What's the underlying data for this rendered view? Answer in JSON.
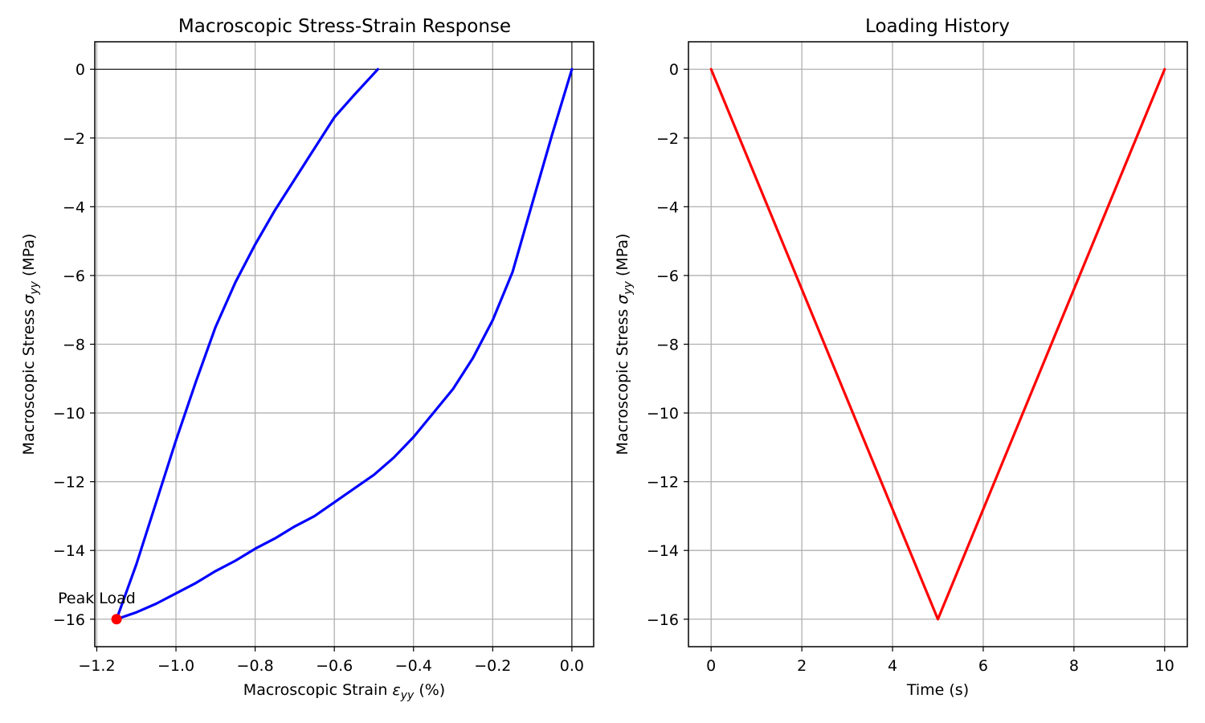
{
  "chart_data": [
    {
      "type": "line",
      "title": "Macroscopic Stress-Strain Response",
      "xlabel": {
        "prefix": "Macroscopic Strain ",
        "symbol": "ε",
        "sub": "yy",
        "suffix": " (%)"
      },
      "ylabel": {
        "prefix": "Macroscopic Stress ",
        "symbol": "σ",
        "sub": "yy",
        "suffix": " (MPa)"
      },
      "xlim": [
        -1.205,
        0.055
      ],
      "ylim": [
        -16.8,
        0.8
      ],
      "xticks": [
        -1.2,
        -1.0,
        -0.8,
        -0.6,
        -0.4,
        -0.2,
        0.0
      ],
      "xtick_labels": [
        "−1.2",
        "−1.0",
        "−0.8",
        "−0.6",
        "−0.4",
        "−0.2",
        "0.0"
      ],
      "yticks": [
        0,
        -2,
        -4,
        -6,
        -8,
        -10,
        -12,
        -14,
        -16
      ],
      "ytick_labels": [
        "0",
        "−2",
        "−4",
        "−6",
        "−8",
        "−10",
        "−12",
        "−14",
        "−16"
      ],
      "grid": true,
      "reference_lines": {
        "x": 0,
        "y": 0
      },
      "series": [
        {
          "color": "#0000ff",
          "x": [
            0.0,
            -0.05,
            -0.1,
            -0.15,
            -0.2,
            -0.25,
            -0.3,
            -0.35,
            -0.4,
            -0.45,
            -0.5,
            -0.55,
            -0.6,
            -0.65,
            -0.7,
            -0.75,
            -0.8,
            -0.85,
            -0.9,
            -0.95,
            -1.0,
            -1.05,
            -1.1,
            -1.15,
            -1.1,
            -1.05,
            -1.0,
            -0.95,
            -0.9,
            -0.85,
            -0.8,
            -0.75,
            -0.7,
            -0.65,
            -0.6,
            -0.55,
            -0.49
          ],
          "y": [
            0.0,
            -1.9,
            -3.9,
            -5.9,
            -7.3,
            -8.4,
            -9.3,
            -10.0,
            -10.7,
            -11.3,
            -11.8,
            -12.2,
            -12.6,
            -13.0,
            -13.3,
            -13.65,
            -13.95,
            -14.3,
            -14.6,
            -14.95,
            -15.25,
            -15.55,
            -15.8,
            -16.0,
            -14.4,
            -12.6,
            -10.8,
            -9.1,
            -7.5,
            -6.2,
            -5.1,
            -4.1,
            -3.2,
            -2.3,
            -1.4,
            -0.75,
            0.0
          ]
        }
      ],
      "annotations": [
        {
          "text": "Peak Load",
          "x": -1.15,
          "y": -16.0,
          "marker_color": "#ff0000"
        }
      ]
    },
    {
      "type": "line",
      "title": "Loading History",
      "xlabel": {
        "prefix": "Time (s)",
        "symbol": "",
        "sub": "",
        "suffix": ""
      },
      "ylabel": {
        "prefix": "Macroscopic Stress ",
        "symbol": "σ",
        "sub": "yy",
        "suffix": " (MPa)"
      },
      "xlim": [
        -0.5,
        10.5
      ],
      "ylim": [
        -16.8,
        0.8
      ],
      "xticks": [
        0,
        2,
        4,
        6,
        8,
        10
      ],
      "xtick_labels": [
        "0",
        "2",
        "4",
        "6",
        "8",
        "10"
      ],
      "yticks": [
        0,
        -2,
        -4,
        -6,
        -8,
        -10,
        -12,
        -14,
        -16
      ],
      "ytick_labels": [
        "0",
        "−2",
        "−4",
        "−6",
        "−8",
        "−10",
        "−12",
        "−14",
        "−16"
      ],
      "grid": true,
      "series": [
        {
          "color": "#ff0000",
          "x": [
            0,
            5,
            10
          ],
          "y": [
            0,
            -16,
            0
          ]
        }
      ],
      "annotations": []
    }
  ]
}
